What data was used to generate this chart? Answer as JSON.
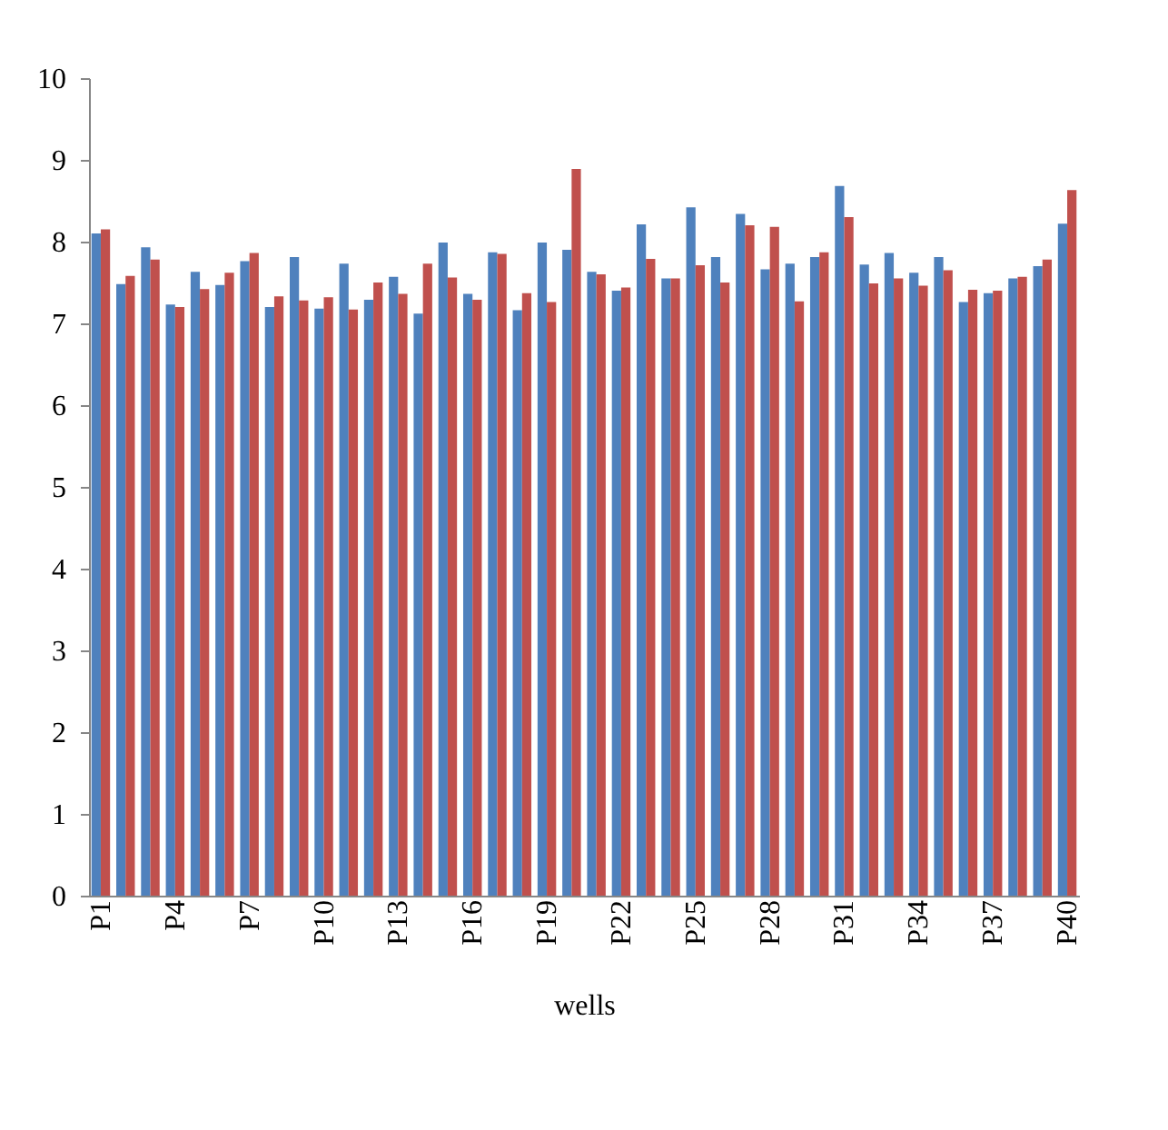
{
  "chart_data": {
    "type": "bar",
    "xlabel": "wells",
    "categories": [
      "P1",
      null,
      null,
      "P4",
      null,
      null,
      "P7",
      null,
      null,
      "P10",
      null,
      null,
      "P13",
      null,
      null,
      "P16",
      null,
      null,
      "P19",
      null,
      null,
      "P22",
      null,
      null,
      "P25",
      null,
      null,
      "P28",
      null,
      null,
      "P31",
      null,
      null,
      "P34",
      null,
      null,
      "P37",
      null,
      null,
      "P40"
    ],
    "series": [
      {
        "color": "#4f81bd",
        "values": [
          8.1,
          7.48,
          7.93,
          7.23,
          7.63,
          7.47,
          7.76,
          7.2,
          7.81,
          7.18,
          7.73,
          7.29,
          7.57,
          7.12,
          7.99,
          7.36,
          7.87,
          7.16,
          7.99,
          7.9,
          7.63,
          7.4,
          8.21,
          7.55,
          8.42,
          7.81,
          8.34,
          7.66,
          7.73,
          7.81,
          8.68,
          7.72,
          7.86,
          7.62,
          7.81,
          7.26,
          7.37,
          7.55,
          7.7,
          8.22
        ]
      },
      {
        "color": "#c0504d",
        "values": [
          8.15,
          7.58,
          7.78,
          7.2,
          7.42,
          7.62,
          7.86,
          7.33,
          7.28,
          7.32,
          7.17,
          7.5,
          7.36,
          7.73,
          7.56,
          7.29,
          7.85,
          7.37,
          7.26,
          8.89,
          7.6,
          7.44,
          7.79,
          7.55,
          7.71,
          7.5,
          8.2,
          8.18,
          7.27,
          7.87,
          8.3,
          7.49,
          7.55,
          7.46,
          7.65,
          7.41,
          7.4,
          7.57,
          7.78,
          8.63
        ]
      }
    ],
    "ylim": [
      0,
      10
    ],
    "yticks": [
      0,
      1,
      2,
      3,
      4,
      5,
      6,
      7,
      8,
      9,
      10
    ],
    "grid": false,
    "legend": false
  }
}
